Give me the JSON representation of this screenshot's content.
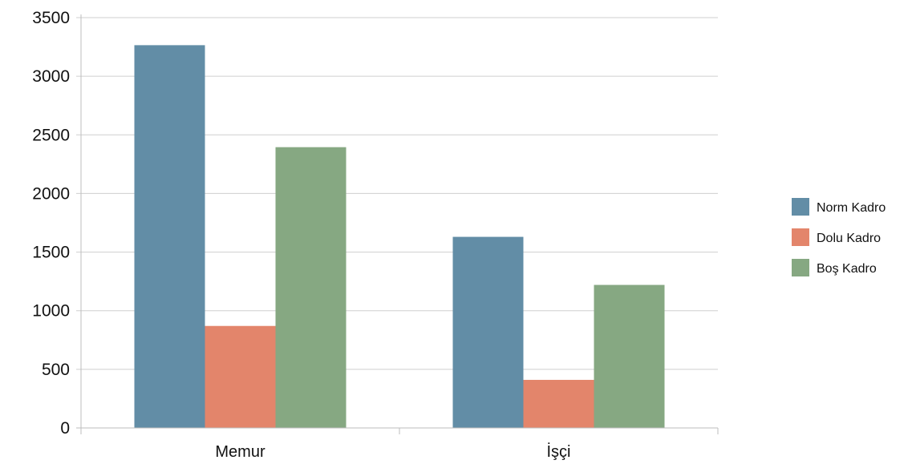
{
  "chart_data": {
    "type": "bar",
    "title": "",
    "xlabel": "",
    "ylabel": "",
    "categories": [
      "Memur",
      "İşçi"
    ],
    "series": [
      {
        "name": "Norm Kadro",
        "color": "#628da6",
        "values": [
          3265,
          1630
        ]
      },
      {
        "name": "Dolu Kadro",
        "color": "#e3856b",
        "values": [
          870,
          410
        ]
      },
      {
        "name": "Boş Kadro",
        "color": "#86a882",
        "values": [
          2395,
          1220
        ]
      }
    ],
    "ylim": [
      0,
      3500
    ],
    "yticks": [
      "0",
      "500",
      "1000",
      "1500",
      "2000",
      "2500",
      "3000",
      "3500"
    ],
    "grid": true,
    "legend": "right"
  }
}
